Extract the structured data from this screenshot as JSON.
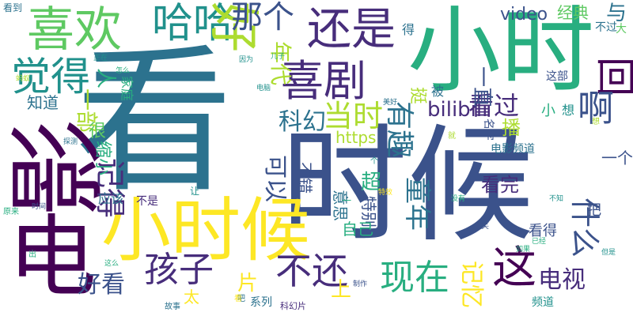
{
  "palette": [
    "#440154",
    "#472d7b",
    "#3b528b",
    "#2c728e",
    "#21918c",
    "#28ae80",
    "#5ec962",
    "#addc30",
    "#fde725"
  ],
  "words": {
    "kan": "看",
    "shihou": "时候",
    "dian": "电",
    "ying": "影",
    "xiaoshi": "小时",
    "xiaoshihou": "小时候",
    "xihuan": "喜欢",
    "haha": "哈哈",
    "hao": "好",
    "nage": "那个",
    "haishi": "还是",
    "juede": "觉得",
    "xiju": "喜剧",
    "hui": "回",
    "yibu": "一部",
    "kanguo": "看过",
    "bilibili": "bilibili",
    "video": "video",
    "jingdian": "经典",
    "buguo": "不过",
    "yu": "与",
    "da": "大",
    "niandai": "年代",
    "ren": "人",
    "jiating": "家庭",
    "zhidao": "知道",
    "dangshi": "当时",
    "youqu": "有趣",
    "a": "啊",
    "kehuan": "科幻",
    "ting": "挺",
    "yizhi": "一直",
    "zhebu": "这部",
    "xiao": "小",
    "xiang": "想",
    "bei": "被",
    "de": "得",
    "hen": "很",
    "https": "https",
    "jide": "记得",
    "suoxiao": "缩小",
    "keyi": "可以",
    "bucuo": "不错",
    "chao": "超",
    "tebie": "特别",
    "kanwan": "看完",
    "yige": "一个",
    "bo": "播",
    "mingzi": "名字",
    "dianyingpindao": "电影频道",
    "shenme": "什么",
    "tongnian": "童年",
    "yisi": "意思",
    "ziji": "自己",
    "haizi": "孩子",
    "buhuan": "不还",
    "xianzai": "现在",
    "zhe": "这",
    "dianshi": "电视",
    "haokan": "好看",
    "yinggai": "应该",
    "bushi": "不是",
    "rang": "让",
    "pian": "片",
    "shang": "上",
    "jiyi": "记忆",
    "kande": "看得",
    "ba": "把",
    "xi": "系列",
    "tai": "太",
    "pinpdao": "频道",
    "kehuanpian": "科幻片",
    "gushi": "故事",
    "yuanlai": "原来",
    "zhengzai": "正在",
    "mayi": "蚂蚁",
    "yinwei": "因为",
    "zenme": "怎么",
    "erzi": "儿子",
    "diannao": "电脑",
    "meishi": "美好",
    "tanxian": "探测",
    "yijing": "已经",
    "danshi": "但是",
    "zheme": "这么",
    "xiao2": "笑",
    "buzhi": "不知",
    "kandao": "看到",
    "shijian": "时间",
    "kan2": "看",
    "ge": "个",
    "jiu": "就",
    "meiyou": "没有",
    "zhizuo": "制作",
    "texiao": "特效",
    "ruguo": "如果",
    "chu": "出",
    "ba2": "吧",
    "yi": "一",
    "xiang2": "想"
  }
}
